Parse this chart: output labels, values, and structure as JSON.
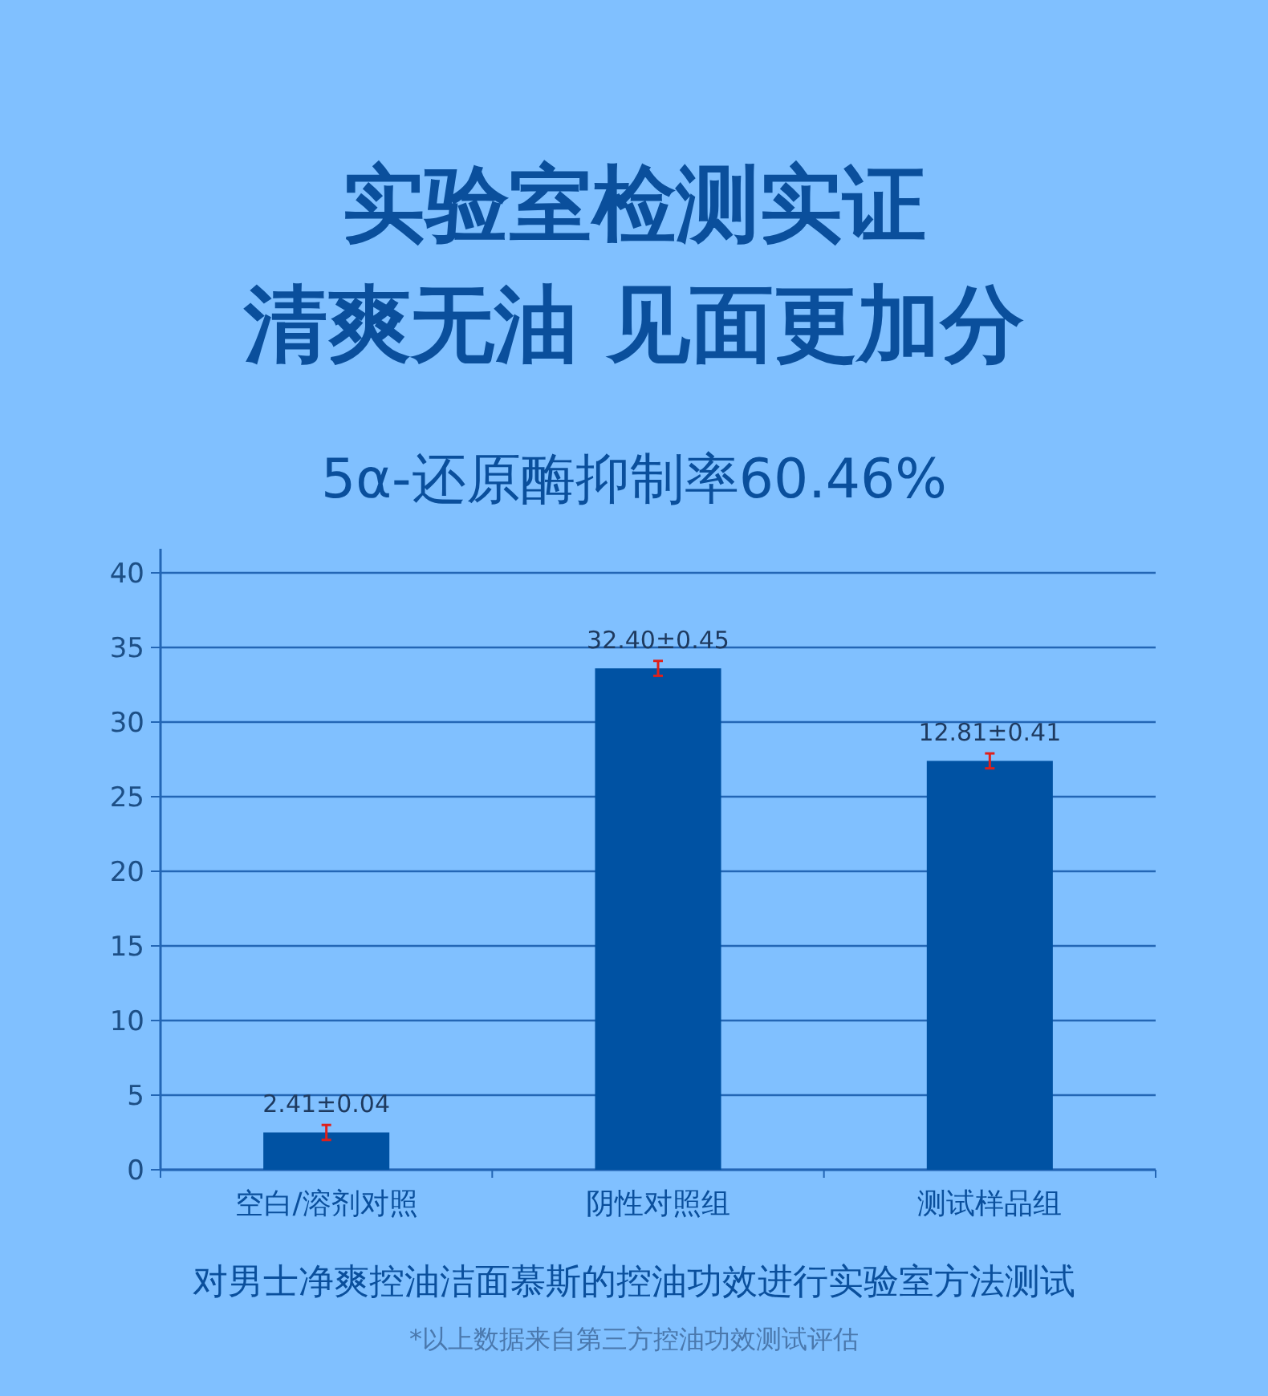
{
  "chart_data": {
    "type": "bar",
    "title": "实验室检测实证",
    "subtitle": "清爽无油 见面更加分",
    "categories": [
      "空白/溶剂对照",
      "阴性对照组",
      "测试样品组"
    ],
    "values": [
      2.5,
      33.6,
      27.4
    ],
    "errors": [
      0.5,
      0.5,
      0.5
    ],
    "color": "#0052a3",
    "ylim": [
      0,
      40
    ],
    "yticks": [
      0,
      5,
      10,
      15,
      20,
      25,
      30,
      35,
      40
    ],
    "grid": "y",
    "annotations": [
      {
        "text": "2.41±0.04",
        "x": "空白/溶剂对照",
        "y": 3.0
      },
      {
        "text": "32.40±0.45",
        "x": "阴性对照组",
        "y": 34.1
      },
      {
        "text": "12.81±0.41",
        "x": "测试样品组",
        "y": 27.9
      },
      "5α-还原酶抑制率60.46%",
      "对男士净爽控油洁面慕斯的控油功效进行实验室方法测试",
      "*以上数据来自第三方控油功效测试评估"
    ]
  }
}
